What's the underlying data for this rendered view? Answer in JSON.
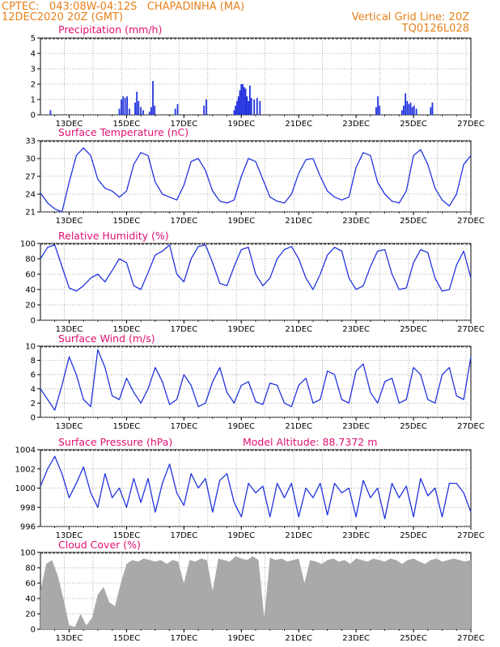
{
  "header": {
    "left_line1": "CPTEC:   043:08W-04:12S   CHAPADINHA (MA)",
    "left_line2": "12DEC2020 20Z (GMT)",
    "right_line1": "Vertical Grid Line: 20Z",
    "right_line2": "TQ0126L028"
  },
  "colors": {
    "line": "#2233dd",
    "bar": "#2233dd",
    "cloud": "#a9a9a9",
    "header": "#e8801a",
    "title": "#e01070"
  },
  "chart_data": [
    {
      "type": "bar",
      "title": "Precipitation (mm/h)",
      "ylim": [
        0,
        5
      ],
      "yticks": [
        "0",
        "1",
        "2",
        "3",
        "4",
        "5"
      ],
      "xticks": [
        "13DEC",
        "15DEC",
        "17DEC",
        "19DEC",
        "21DEC",
        "23DEC",
        "25DEC",
        "27DEC"
      ],
      "x": [
        0.35,
        2.75,
        2.82,
        2.88,
        2.95,
        3.02,
        3.1,
        3.3,
        3.36,
        3.42,
        3.5,
        3.58,
        3.8,
        3.86,
        3.92,
        3.98,
        4.7,
        4.78,
        5.7,
        5.78,
        6.75,
        6.8,
        6.85,
        6.9,
        6.95,
        7.0,
        7.05,
        7.1,
        7.15,
        7.2,
        7.25,
        7.3,
        7.35,
        7.45,
        7.55,
        7.65,
        11.7,
        11.76,
        11.82,
        12.6,
        12.66,
        12.72,
        12.78,
        12.84,
        12.9,
        12.96,
        13.02,
        13.1,
        13.6,
        13.66
      ],
      "values": [
        0.3,
        0.4,
        1.0,
        1.2,
        1.1,
        1.2,
        0.4,
        0.8,
        1.5,
        0.9,
        0.5,
        0.3,
        0.2,
        0.5,
        2.2,
        0.6,
        0.4,
        0.7,
        0.6,
        1.0,
        0.3,
        0.6,
        0.9,
        1.2,
        1.6,
        2.0,
        2.0,
        1.8,
        1.7,
        1.2,
        0.9,
        1.9,
        1.1,
        1.0,
        1.1,
        0.9,
        0.5,
        1.2,
        0.6,
        0.3,
        0.6,
        1.4,
        0.9,
        0.7,
        0.8,
        0.5,
        0.6,
        0.4,
        0.5,
        0.8
      ]
    },
    {
      "type": "line",
      "title": "Surface Temperature (nC)",
      "ylim": [
        21,
        33
      ],
      "yticks": [
        "21",
        "24",
        "27",
        "30",
        "33"
      ],
      "xticks": [
        "13DEC",
        "15DEC",
        "17DEC",
        "19DEC",
        "21DEC",
        "23DEC",
        "25DEC",
        "27DEC"
      ],
      "x": [
        0,
        0.25,
        0.5,
        0.75,
        1.0,
        1.25,
        1.5,
        1.75,
        2.0,
        2.25,
        2.5,
        2.75,
        3.0,
        3.25,
        3.5,
        3.75,
        4.0,
        4.25,
        4.5,
        4.75,
        5.0,
        5.25,
        5.5,
        5.75,
        6.0,
        6.25,
        6.5,
        6.75,
        7.0,
        7.25,
        7.5,
        7.75,
        8.0,
        8.25,
        8.5,
        8.75,
        9.0,
        9.25,
        9.5,
        9.75,
        10.0,
        10.25,
        10.5,
        10.75,
        11.0,
        11.25,
        11.5,
        11.75,
        12.0,
        12.25,
        12.5,
        12.75,
        13.0,
        13.25,
        13.5,
        13.75,
        14.0,
        14.25,
        14.5,
        14.75,
        15.0
      ],
      "values": [
        24.2,
        22.5,
        21.5,
        21.0,
        26.0,
        30.5,
        31.8,
        30.5,
        26.5,
        25.0,
        24.5,
        23.5,
        24.5,
        29.0,
        31.0,
        30.5,
        26.0,
        24.0,
        23.5,
        23.0,
        25.5,
        29.5,
        30.0,
        28.0,
        24.5,
        22.8,
        22.5,
        23.0,
        27.0,
        30.0,
        29.5,
        26.5,
        23.5,
        22.8,
        22.5,
        24.0,
        27.5,
        29.8,
        30.0,
        27.0,
        24.5,
        23.5,
        23.0,
        23.5,
        28.5,
        31.0,
        30.5,
        26.0,
        24.0,
        22.8,
        22.5,
        24.5,
        30.5,
        31.5,
        29.0,
        25.0,
        23.0,
        22.0,
        24.0,
        29.0,
        30.5
      ]
    },
    {
      "type": "line",
      "title": "Relative Humidity (%)",
      "ylim": [
        0,
        100
      ],
      "yticks": [
        "0",
        "20",
        "40",
        "60",
        "80",
        "100"
      ],
      "xticks": [
        "13DEC",
        "15DEC",
        "17DEC",
        "19DEC",
        "21DEC",
        "23DEC",
        "25DEC",
        "27DEC"
      ],
      "x": [
        0,
        0.25,
        0.5,
        0.75,
        1.0,
        1.25,
        1.5,
        1.75,
        2.0,
        2.25,
        2.5,
        2.75,
        3.0,
        3.25,
        3.5,
        3.75,
        4.0,
        4.25,
        4.5,
        4.75,
        5.0,
        5.25,
        5.5,
        5.75,
        6.0,
        6.25,
        6.5,
        6.75,
        7.0,
        7.25,
        7.5,
        7.75,
        8.0,
        8.25,
        8.5,
        8.75,
        9.0,
        9.25,
        9.5,
        9.75,
        10.0,
        10.25,
        10.5,
        10.75,
        11.0,
        11.25,
        11.5,
        11.75,
        12.0,
        12.25,
        12.5,
        12.75,
        13.0,
        13.25,
        13.5,
        13.75,
        14.0,
        14.25,
        14.5,
        14.75,
        15.0
      ],
      "values": [
        80,
        95,
        98,
        70,
        42,
        38,
        45,
        55,
        60,
        50,
        65,
        80,
        75,
        45,
        40,
        62,
        85,
        90,
        98,
        60,
        50,
        80,
        96,
        98,
        75,
        48,
        45,
        70,
        92,
        95,
        60,
        45,
        55,
        80,
        92,
        96,
        80,
        55,
        40,
        60,
        85,
        95,
        90,
        55,
        40,
        45,
        70,
        90,
        92,
        60,
        40,
        42,
        75,
        92,
        88,
        55,
        38,
        40,
        72,
        90,
        55
      ]
    },
    {
      "type": "line",
      "title": "Surface Wind (m/s)",
      "ylim": [
        0,
        10
      ],
      "yticks": [
        "0",
        "2",
        "4",
        "6",
        "8",
        "10"
      ],
      "xticks": [
        "13DEC",
        "15DEC",
        "17DEC",
        "19DEC",
        "21DEC",
        "23DEC",
        "25DEC",
        "27DEC"
      ],
      "x": [
        0,
        0.25,
        0.5,
        0.75,
        1.0,
        1.25,
        1.5,
        1.75,
        2.0,
        2.25,
        2.5,
        2.75,
        3.0,
        3.25,
        3.5,
        3.75,
        4.0,
        4.25,
        4.5,
        4.75,
        5.0,
        5.25,
        5.5,
        5.75,
        6.0,
        6.25,
        6.5,
        6.75,
        7.0,
        7.25,
        7.5,
        7.75,
        8.0,
        8.25,
        8.5,
        8.75,
        9.0,
        9.25,
        9.5,
        9.75,
        10.0,
        10.25,
        10.5,
        10.75,
        11.0,
        11.25,
        11.5,
        11.75,
        12.0,
        12.25,
        12.5,
        12.75,
        13.0,
        13.25,
        13.5,
        13.75,
        14.0,
        14.25,
        14.5,
        14.75,
        15.0
      ],
      "values": [
        4.0,
        2.5,
        1.0,
        4.5,
        8.5,
        6.0,
        2.5,
        1.5,
        9.5,
        7.0,
        3.0,
        2.5,
        5.5,
        3.5,
        2.0,
        4.0,
        7.0,
        5.0,
        1.8,
        2.5,
        6.0,
        4.5,
        1.5,
        2.0,
        5.0,
        7.0,
        3.5,
        2.0,
        4.5,
        5.0,
        2.2,
        1.8,
        4.8,
        4.5,
        2.0,
        1.5,
        4.5,
        5.5,
        2.0,
        2.5,
        6.5,
        6.0,
        2.5,
        2.0,
        6.5,
        7.5,
        3.5,
        2.0,
        5.0,
        5.5,
        2.0,
        2.5,
        7.0,
        6.0,
        2.5,
        2.0,
        6.0,
        7.0,
        3.0,
        2.5,
        8.5
      ]
    },
    {
      "type": "line",
      "title": "Surface Pressure (hPa)",
      "annotation": "Model Altitude: 88.7372 m",
      "ylim": [
        996,
        1004
      ],
      "yticks": [
        "996",
        "998",
        "1000",
        "1002",
        "1004"
      ],
      "xticks": [
        "13DEC",
        "15DEC",
        "17DEC",
        "19DEC",
        "21DEC",
        "23DEC",
        "25DEC",
        "27DEC"
      ],
      "x": [
        0,
        0.25,
        0.5,
        0.75,
        1.0,
        1.25,
        1.5,
        1.75,
        2.0,
        2.25,
        2.5,
        2.75,
        3.0,
        3.25,
        3.5,
        3.75,
        4.0,
        4.25,
        4.5,
        4.75,
        5.0,
        5.25,
        5.5,
        5.75,
        6.0,
        6.25,
        6.5,
        6.75,
        7.0,
        7.25,
        7.5,
        7.75,
        8.0,
        8.25,
        8.5,
        8.75,
        9.0,
        9.25,
        9.5,
        9.75,
        10.0,
        10.25,
        10.5,
        10.75,
        11.0,
        11.25,
        11.5,
        11.75,
        12.0,
        12.25,
        12.5,
        12.75,
        13.0,
        13.25,
        13.5,
        13.75,
        14.0,
        14.25,
        14.5,
        14.75,
        15.0
      ],
      "values": [
        1000.2,
        1002.0,
        1003.3,
        1001.5,
        999.0,
        1000.5,
        1002.2,
        999.5,
        998.0,
        1001.5,
        999.0,
        1000.0,
        998.0,
        1001.0,
        998.5,
        1001.0,
        997.5,
        1000.5,
        1002.5,
        999.5,
        998.2,
        1001.5,
        1000.0,
        1001.0,
        997.5,
        1000.8,
        1001.5,
        998.5,
        997.0,
        1000.5,
        999.5,
        1000.2,
        997.0,
        1000.5,
        999.0,
        1000.5,
        997.0,
        1000.0,
        999.0,
        1000.5,
        997.2,
        1000.5,
        999.5,
        1000.0,
        997.0,
        1000.8,
        999.0,
        1000.0,
        996.8,
        1000.5,
        999.0,
        1000.2,
        997.0,
        1001.0,
        999.2,
        1000.0,
        997.0,
        1000.5,
        1000.5,
        999.5,
        997.5
      ]
    },
    {
      "type": "area",
      "title": "Cloud Cover (%)",
      "ylim": [
        0,
        100
      ],
      "yticks": [
        "0",
        "20",
        "40",
        "60",
        "80",
        "100"
      ],
      "xticks": [
        "13DEC",
        "15DEC",
        "17DEC",
        "19DEC",
        "21DEC",
        "23DEC",
        "25DEC",
        "27DEC"
      ],
      "x": [
        0,
        0.2,
        0.4,
        0.6,
        0.8,
        1.0,
        1.2,
        1.4,
        1.6,
        1.8,
        2.0,
        2.2,
        2.4,
        2.6,
        2.8,
        3.0,
        3.2,
        3.4,
        3.6,
        3.8,
        4.0,
        4.2,
        4.4,
        4.6,
        4.8,
        5.0,
        5.2,
        5.4,
        5.6,
        5.8,
        6.0,
        6.2,
        6.4,
        6.6,
        6.8,
        7.0,
        7.2,
        7.4,
        7.6,
        7.8,
        8.0,
        8.2,
        8.4,
        8.6,
        8.8,
        9.0,
        9.2,
        9.4,
        9.6,
        9.8,
        10.0,
        10.2,
        10.4,
        10.6,
        10.8,
        11.0,
        11.2,
        11.4,
        11.6,
        11.8,
        12.0,
        12.2,
        12.4,
        12.6,
        12.8,
        13.0,
        13.2,
        13.4,
        13.6,
        13.8,
        14.0,
        14.2,
        14.4,
        14.6,
        14.8,
        15.0
      ],
      "values": [
        50,
        85,
        90,
        70,
        40,
        5,
        3,
        20,
        5,
        15,
        45,
        55,
        35,
        30,
        60,
        85,
        90,
        88,
        92,
        90,
        88,
        90,
        85,
        90,
        88,
        60,
        90,
        88,
        92,
        90,
        50,
        92,
        90,
        88,
        95,
        92,
        90,
        95,
        90,
        15,
        93,
        90,
        92,
        88,
        90,
        92,
        60,
        90,
        88,
        85,
        90,
        92,
        88,
        90,
        85,
        92,
        90,
        88,
        92,
        90,
        88,
        92,
        90,
        85,
        90,
        92,
        88,
        85,
        90,
        92,
        88,
        90,
        92,
        90,
        88,
        90
      ]
    }
  ]
}
